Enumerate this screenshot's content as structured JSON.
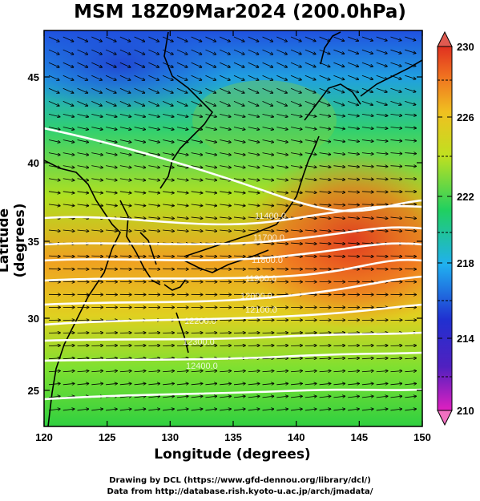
{
  "title": "MSM 18Z09Mar2024 (200.0hPa)",
  "x_axis": {
    "label": "Longitude (degrees)",
    "ticks": [
      "120",
      "125",
      "130",
      "135",
      "140",
      "145",
      "150"
    ],
    "range": [
      120,
      150
    ]
  },
  "y_axis": {
    "label": "Latitude  (degrees)",
    "ticks": [
      "25",
      "30",
      "35",
      "40",
      "45"
    ],
    "range": [
      22.4,
      47.6
    ]
  },
  "colorbar": {
    "ticks": [
      "230",
      "226",
      "222",
      "218",
      "214",
      "210"
    ],
    "range": [
      210,
      230
    ],
    "colors": [
      "#e020c0",
      "#2030d0",
      "#20c0e0",
      "#20d060",
      "#e0e020",
      "#f08020",
      "#e03020"
    ]
  },
  "contour_labels": [
    "11400.0",
    "11700.0",
    "11800.0",
    "11900.0",
    "12000.0",
    "12100.0",
    "12200.0",
    "12300.0",
    "12400.0"
  ],
  "credits": {
    "line1": "Drawing by DCL (https://www.gfd-dennou.org/library/dcl/)",
    "line2": "Data from http://database.rish.kyoto-u.ac.jp/arch/jmadata/"
  }
}
